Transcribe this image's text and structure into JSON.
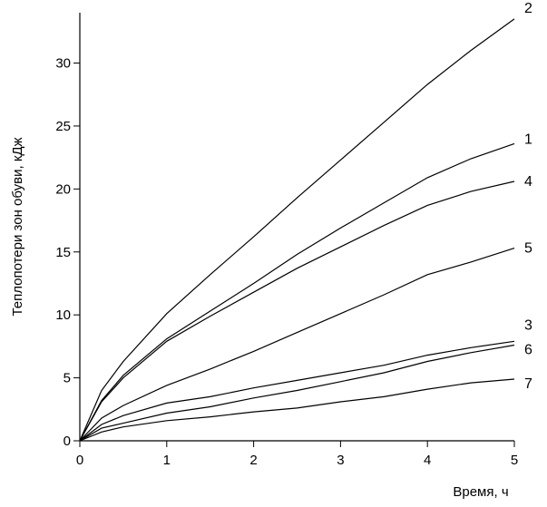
{
  "chart_data": {
    "type": "line",
    "title": "",
    "xlabel": "Время, ч",
    "ylabel": "Теплопотери зон обуви, кДж",
    "xlim": [
      0,
      5
    ],
    "ylim": [
      0,
      34
    ],
    "x_ticks": [
      0,
      1,
      2,
      3,
      4,
      5
    ],
    "y_ticks": [
      0,
      5,
      10,
      15,
      20,
      25,
      30
    ],
    "grid": false,
    "x": [
      0,
      0.25,
      0.5,
      1,
      1.5,
      2,
      2.5,
      3,
      3.5,
      4,
      4.5,
      5
    ],
    "series": [
      {
        "name": "1",
        "values": [
          0,
          3.2,
          5.2,
          8.1,
          10.3,
          12.5,
          14.8,
          16.9,
          18.9,
          20.9,
          22.4,
          23.6
        ]
      },
      {
        "name": "2",
        "values": [
          0,
          4.0,
          6.3,
          10.1,
          13.2,
          16.2,
          19.3,
          22.3,
          25.3,
          28.3,
          31.0,
          33.5
        ]
      },
      {
        "name": "3",
        "values": [
          0,
          1.3,
          2.0,
          3.0,
          3.5,
          4.2,
          4.8,
          5.4,
          6.0,
          6.8,
          7.4,
          7.9
        ]
      },
      {
        "name": "4",
        "values": [
          0,
          3.1,
          5.0,
          7.9,
          9.9,
          11.8,
          13.7,
          15.4,
          17.1,
          18.7,
          19.8,
          20.6
        ]
      },
      {
        "name": "5",
        "values": [
          0,
          1.8,
          2.8,
          4.4,
          5.7,
          7.1,
          8.6,
          10.1,
          11.6,
          13.2,
          14.2,
          15.3
        ]
      },
      {
        "name": "6",
        "values": [
          0,
          1.0,
          1.4,
          2.2,
          2.7,
          3.4,
          4.0,
          4.7,
          5.4,
          6.3,
          7.0,
          7.6
        ]
      },
      {
        "name": "7",
        "values": [
          0,
          0.7,
          1.1,
          1.6,
          1.9,
          2.3,
          2.6,
          3.1,
          3.5,
          4.1,
          4.6,
          4.9
        ]
      }
    ]
  }
}
